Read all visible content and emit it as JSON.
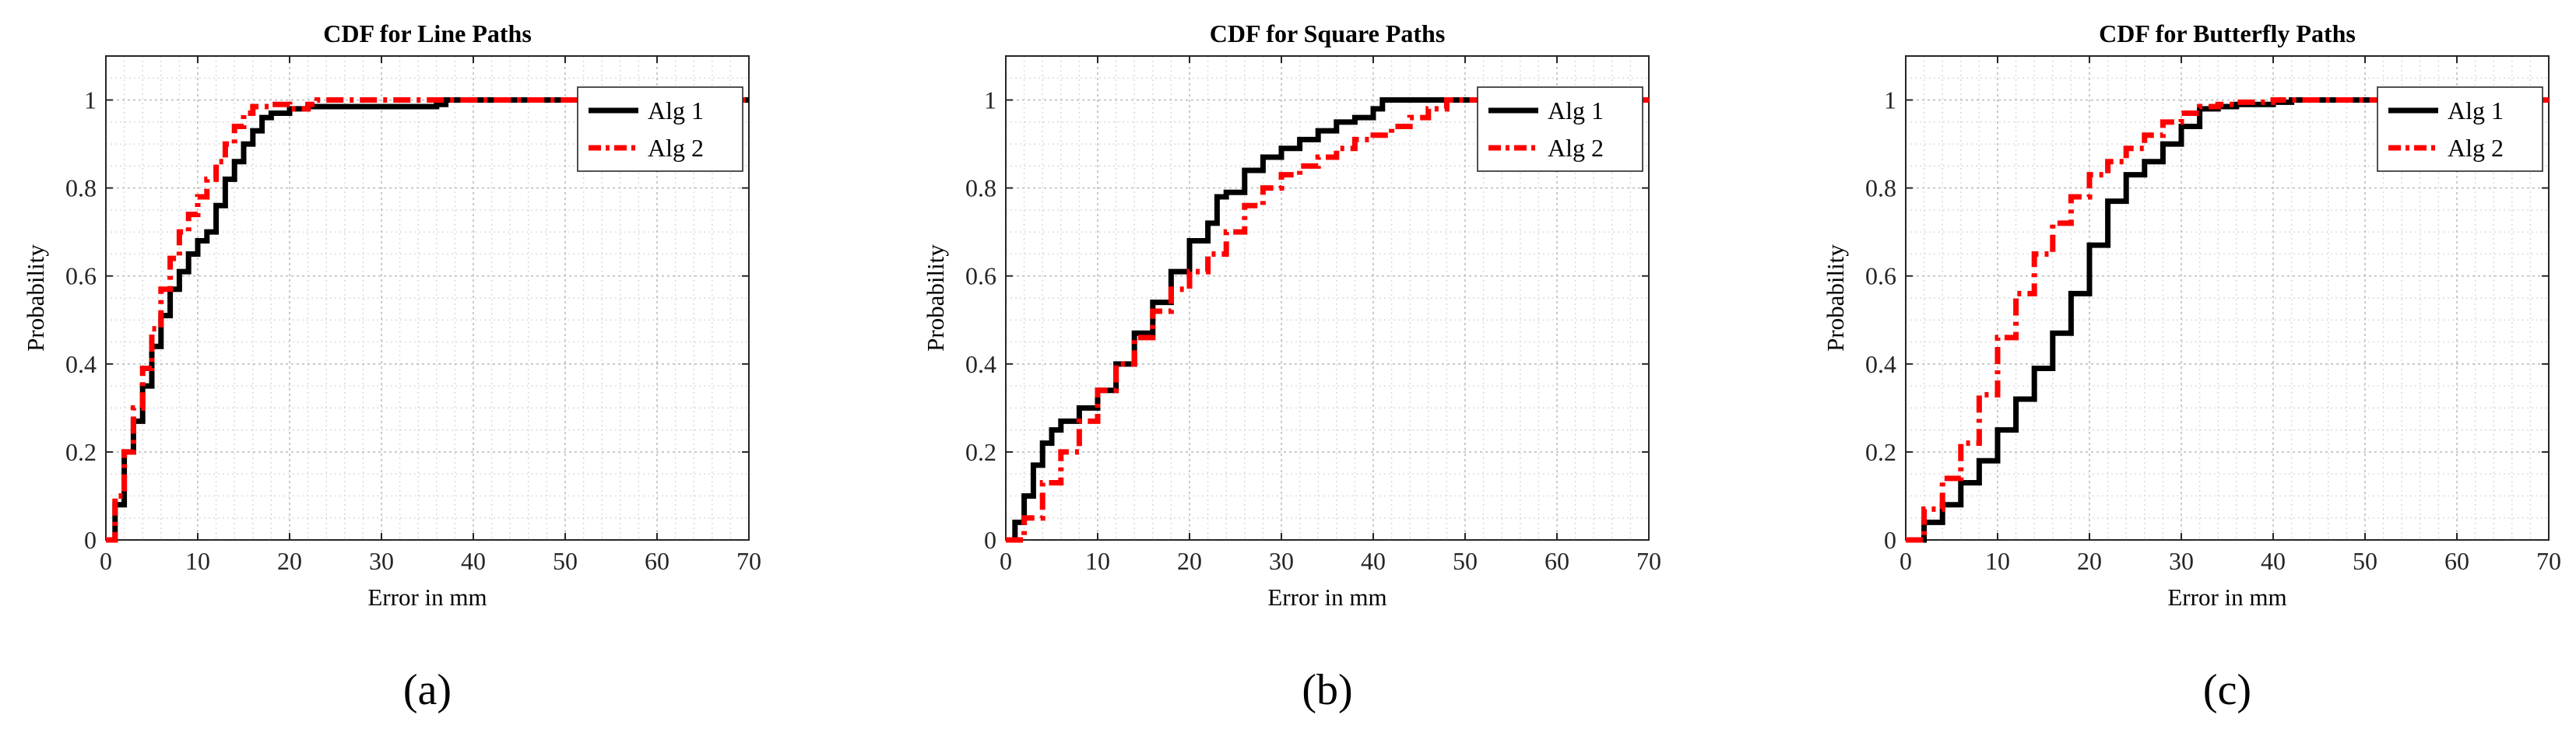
{
  "figure": {
    "subplot_labels": [
      "(a)",
      "(b)",
      "(c)"
    ]
  },
  "chart_data": [
    {
      "type": "line",
      "title": "CDF for Line Paths",
      "xlabel": "Error in mm",
      "ylabel": "Probability",
      "xlim": [
        0,
        70
      ],
      "ylim": [
        0,
        1.1
      ],
      "xticks": [
        0,
        10,
        20,
        30,
        40,
        50,
        60,
        70
      ],
      "yticks": [
        0,
        0.2,
        0.4,
        0.6,
        0.8,
        1
      ],
      "xtick_labels": [
        "0",
        "10",
        "20",
        "30",
        "40",
        "50",
        "60",
        "70"
      ],
      "ytick_labels": [
        "0",
        "0.2",
        "0.4",
        "0.6",
        "0.8",
        "1"
      ],
      "grid": true,
      "legend_position": "upper-right",
      "series": [
        {
          "name": "Alg 1",
          "color": "#000000",
          "dash": "solid",
          "x": [
            0,
            1,
            2,
            3,
            4,
            5,
            6,
            7,
            8,
            9,
            10,
            11,
            12,
            13,
            14,
            15,
            16,
            17,
            18,
            20,
            22,
            26,
            30,
            34,
            36,
            37,
            70
          ],
          "y": [
            0,
            0.08,
            0.2,
            0.27,
            0.35,
            0.44,
            0.51,
            0.57,
            0.61,
            0.65,
            0.68,
            0.7,
            0.76,
            0.82,
            0.86,
            0.9,
            0.93,
            0.96,
            0.97,
            0.98,
            0.985,
            0.985,
            0.985,
            0.985,
            0.99,
            1.0,
            1.0
          ]
        },
        {
          "name": "Alg 2",
          "color": "#ff0000",
          "dash": "dashdot",
          "x": [
            0,
            1,
            2,
            3,
            4,
            5,
            6,
            7,
            8,
            9,
            10,
            11,
            12,
            13,
            14,
            15,
            16,
            18,
            20,
            22,
            23,
            70
          ],
          "y": [
            0,
            0.1,
            0.2,
            0.3,
            0.39,
            0.48,
            0.57,
            0.64,
            0.7,
            0.74,
            0.78,
            0.82,
            0.86,
            0.9,
            0.94,
            0.97,
            0.985,
            0.99,
            0.98,
            0.99,
            1.0,
            1.0
          ]
        }
      ]
    },
    {
      "type": "line",
      "title": "CDF for Square Paths",
      "xlabel": "Error in mm",
      "ylabel": "Probability",
      "xlim": [
        0,
        70
      ],
      "ylim": [
        0,
        1.1
      ],
      "xticks": [
        0,
        10,
        20,
        30,
        40,
        50,
        60,
        70
      ],
      "yticks": [
        0,
        0.2,
        0.4,
        0.6,
        0.8,
        1
      ],
      "xtick_labels": [
        "0",
        "10",
        "20",
        "30",
        "40",
        "50",
        "60",
        "70"
      ],
      "ytick_labels": [
        "0",
        "0.2",
        "0.4",
        "0.6",
        "0.8",
        "1"
      ],
      "grid": true,
      "legend_position": "upper-right",
      "series": [
        {
          "name": "Alg 1",
          "color": "#000000",
          "dash": "solid",
          "x": [
            0,
            1,
            2,
            3,
            4,
            5,
            6,
            8,
            10,
            12,
            14,
            16,
            18,
            20,
            22,
            23,
            24,
            26,
            28,
            30,
            32,
            34,
            36,
            38,
            40,
            41,
            45,
            70
          ],
          "y": [
            0,
            0.04,
            0.1,
            0.17,
            0.22,
            0.25,
            0.27,
            0.3,
            0.34,
            0.4,
            0.47,
            0.54,
            0.61,
            0.68,
            0.72,
            0.78,
            0.79,
            0.84,
            0.87,
            0.89,
            0.91,
            0.93,
            0.95,
            0.96,
            0.98,
            1.0,
            1.0,
            1.0
          ]
        },
        {
          "name": "Alg 2",
          "color": "#ff0000",
          "dash": "dashdot",
          "x": [
            0,
            2,
            4,
            6,
            8,
            10,
            12,
            14,
            16,
            18,
            20,
            22,
            24,
            26,
            28,
            30,
            32,
            34,
            36,
            38,
            40,
            42,
            44,
            46,
            48,
            70
          ],
          "y": [
            0,
            0.05,
            0.13,
            0.2,
            0.27,
            0.34,
            0.4,
            0.46,
            0.52,
            0.57,
            0.61,
            0.65,
            0.7,
            0.76,
            0.8,
            0.83,
            0.85,
            0.87,
            0.89,
            0.91,
            0.92,
            0.94,
            0.96,
            0.98,
            1.0,
            1.0
          ]
        }
      ]
    },
    {
      "type": "line",
      "title": "CDF for Butterfly Paths",
      "xlabel": "Error in mm",
      "ylabel": "Probability",
      "xlim": [
        0,
        70
      ],
      "ylim": [
        0,
        1.1
      ],
      "xticks": [
        0,
        10,
        20,
        30,
        40,
        50,
        60,
        70
      ],
      "yticks": [
        0,
        0.2,
        0.4,
        0.6,
        0.8,
        1
      ],
      "xtick_labels": [
        "0",
        "10",
        "20",
        "30",
        "40",
        "50",
        "60",
        "70"
      ],
      "ytick_labels": [
        "0",
        "0.2",
        "0.4",
        "0.6",
        "0.8",
        "1"
      ],
      "grid": true,
      "legend_position": "upper-right",
      "series": [
        {
          "name": "Alg 1",
          "color": "#000000",
          "dash": "solid",
          "x": [
            0,
            2,
            4,
            6,
            8,
            10,
            12,
            14,
            16,
            18,
            20,
            22,
            24,
            26,
            28,
            30,
            32,
            34,
            36,
            38,
            40,
            42,
            70
          ],
          "y": [
            0,
            0.04,
            0.08,
            0.13,
            0.18,
            0.25,
            0.32,
            0.39,
            0.47,
            0.56,
            0.67,
            0.77,
            0.83,
            0.86,
            0.9,
            0.94,
            0.98,
            0.985,
            0.99,
            0.99,
            0.995,
            1.0,
            1.0
          ]
        },
        {
          "name": "Alg 2",
          "color": "#ff0000",
          "dash": "dashdot",
          "x": [
            0,
            2,
            4,
            6,
            8,
            10,
            12,
            14,
            16,
            18,
            20,
            22,
            24,
            26,
            28,
            30,
            32,
            34,
            36,
            38,
            40,
            70
          ],
          "y": [
            0,
            0.07,
            0.14,
            0.22,
            0.33,
            0.46,
            0.56,
            0.65,
            0.72,
            0.78,
            0.83,
            0.86,
            0.89,
            0.92,
            0.95,
            0.97,
            0.985,
            0.99,
            0.995,
            0.995,
            1.0,
            1.0
          ]
        }
      ]
    }
  ]
}
